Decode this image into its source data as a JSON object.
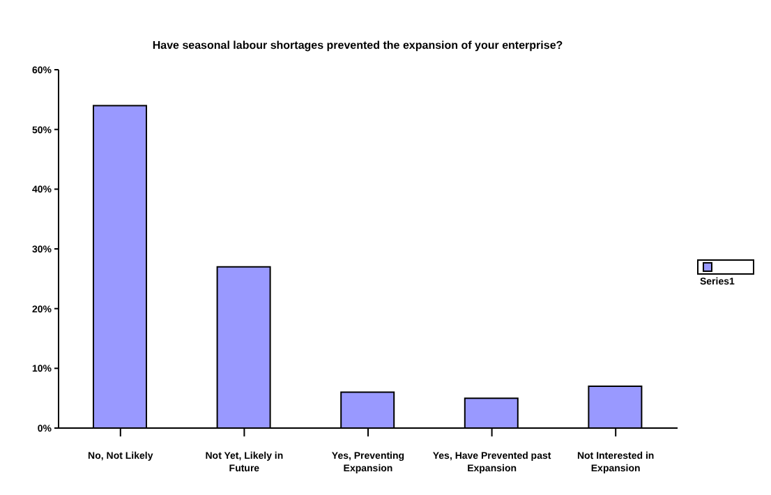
{
  "chart_data": {
    "type": "bar",
    "title": "Have seasonal labour shortages prevented the expansion of your enterprise?",
    "categories": [
      "No, Not Likely",
      "Not Yet, Likely in Future",
      "Yes, Preventing Expansion",
      "Yes, Have Prevented past Expansion",
      "Not Interested in Expansion"
    ],
    "series": [
      {
        "name": "Series1",
        "color": "#9999ff",
        "values": [
          54,
          27,
          6,
          5,
          7
        ]
      }
    ],
    "ylim": [
      0,
      60
    ],
    "yticks": [
      {
        "value": 0,
        "label": "0%"
      },
      {
        "value": 10,
        "label": "10%"
      },
      {
        "value": 20,
        "label": "20%"
      },
      {
        "value": 30,
        "label": "30%"
      },
      {
        "value": 40,
        "label": "40%"
      },
      {
        "value": 50,
        "label": "50%"
      },
      {
        "value": 60,
        "label": "60%"
      }
    ],
    "grid": false,
    "legend": "right"
  }
}
